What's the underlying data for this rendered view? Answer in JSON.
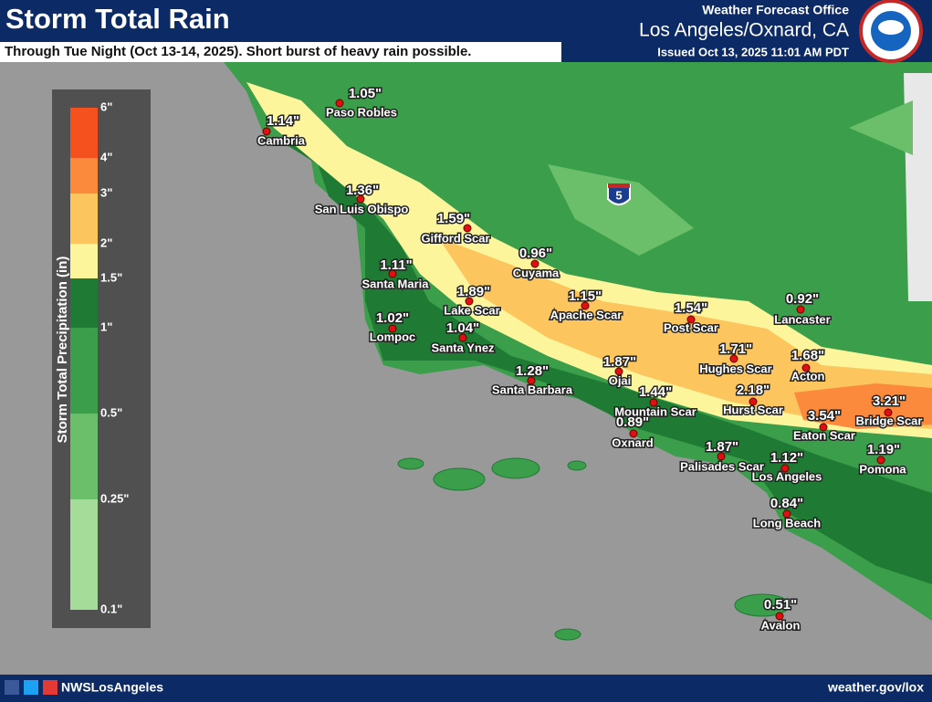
{
  "header": {
    "title": "Storm Total Rain",
    "subtitle": "Through Tue Night (Oct 13-14, 2025). Short burst of heavy rain possible.",
    "office": "Weather Forecast Office",
    "location": "Los Angeles/Oxnard, CA",
    "issued": "Issued Oct 13, 2025 11:01 AM PDT"
  },
  "legend": {
    "title": "Storm Total Precipitation (in)",
    "bins": [
      {
        "label": "6\"",
        "color": "#f4511e"
      },
      {
        "label": "4\"",
        "color": "#fb8a3c"
      },
      {
        "label": "3\"",
        "color": "#fdc55e"
      },
      {
        "label": "2\"",
        "color": "#fdf59c"
      },
      {
        "label": "1.5\"",
        "color": "#1f7a34"
      },
      {
        "label": "1\"",
        "color": "#3a9e4a"
      },
      {
        "label": "0.5\"",
        "color": "#6cbf6a"
      },
      {
        "label": "0.25\"",
        "color": "#a6dc9a"
      },
      {
        "label": "0.1\""
      }
    ]
  },
  "map": {
    "interstate_shield": "5",
    "locations": [
      {
        "name": "Paso Robles",
        "amount": "1.05\""
      },
      {
        "name": "Cambria",
        "amount": "1.14\""
      },
      {
        "name": "San Luis Obispo",
        "amount": "1.36\""
      },
      {
        "name": "Gifford Scar",
        "amount": "1.59\""
      },
      {
        "name": "Cuyama",
        "amount": "0.96\""
      },
      {
        "name": "Santa Maria",
        "amount": "1.11\""
      },
      {
        "name": "Lake Scar",
        "amount": "1.89\""
      },
      {
        "name": "Apache Scar",
        "amount": "1.15\""
      },
      {
        "name": "Post Scar",
        "amount": "1.54\""
      },
      {
        "name": "Lancaster",
        "amount": "0.92\""
      },
      {
        "name": "Lompoc",
        "amount": "1.02\""
      },
      {
        "name": "Santa Ynez",
        "amount": "1.04\""
      },
      {
        "name": "Hughes Scar",
        "amount": "1.71\""
      },
      {
        "name": "Acton",
        "amount": "1.68\""
      },
      {
        "name": "Ojai",
        "amount": "1.87\""
      },
      {
        "name": "Santa Barbara",
        "amount": "1.28\""
      },
      {
        "name": "Mountain Scar",
        "amount": "1.44\""
      },
      {
        "name": "Hurst Scar",
        "amount": "2.18\""
      },
      {
        "name": "Bridge Scar",
        "amount": "3.21\""
      },
      {
        "name": "Eaton Scar",
        "amount": "3.54\""
      },
      {
        "name": "Oxnard",
        "amount": "0.89\""
      },
      {
        "name": "Pomona",
        "amount": "1.19\""
      },
      {
        "name": "Palisades Scar",
        "amount": "1.87\""
      },
      {
        "name": "Los Angeles",
        "amount": "1.12\""
      },
      {
        "name": "Long Beach",
        "amount": "0.84\""
      },
      {
        "name": "Avalon",
        "amount": "0.51\""
      }
    ]
  },
  "footer": {
    "handle": "NWSLosAngeles",
    "url": "weather.gov/lox"
  }
}
